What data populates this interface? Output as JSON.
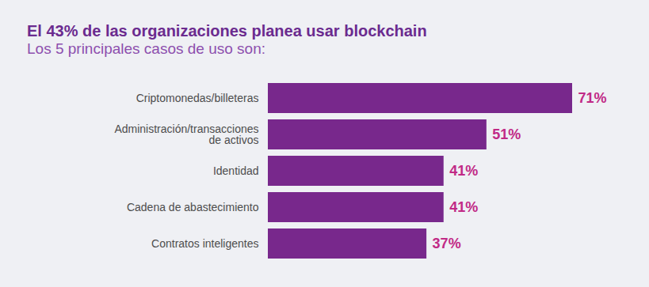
{
  "chart_data": {
    "type": "bar",
    "orientation": "horizontal",
    "title": "El 43% de las organizaciones planea usar blockchain",
    "subtitle": "Los 5 principales casos de uso son:",
    "categories": [
      "Criptomonedas/billeteras",
      "Administración/transacciones\nde activos",
      "Identidad",
      "Cadena de abastecimiento",
      "Contratos inteligentes"
    ],
    "values": [
      71,
      51,
      41,
      41,
      37
    ],
    "value_labels": [
      "71%",
      "51%",
      "41%",
      "41%",
      "37%"
    ],
    "color": "#78288c",
    "data_labels": true,
    "tick_labels": "y",
    "grid": false
  }
}
